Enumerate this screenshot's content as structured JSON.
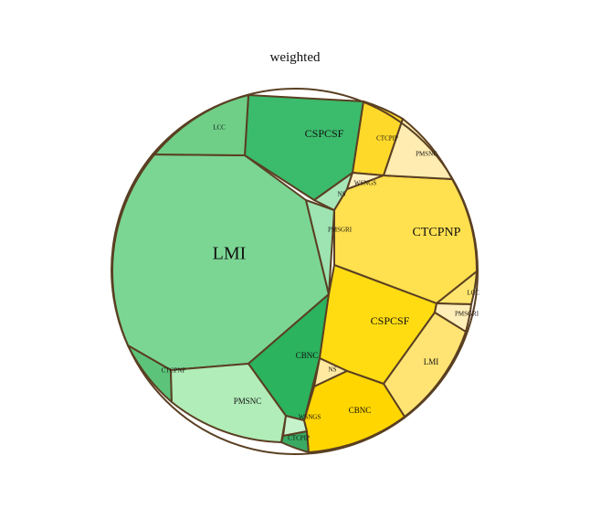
{
  "chart_data": {
    "type": "voronoi-treemap",
    "title": "weighted",
    "border_color": "#5a3f22",
    "groups": [
      {
        "color_family": "green",
        "cells": [
          {
            "label": "LMI",
            "fill": "#7bd694"
          },
          {
            "label": "CSPCSF",
            "fill": "#3bbb6c"
          },
          {
            "label": "LCC",
            "fill": "#6fcf87"
          },
          {
            "label": "PMSGRI",
            "fill": "#9ee3b2"
          },
          {
            "label": "NS",
            "fill": "#a7e6b8"
          },
          {
            "label": "CBNC",
            "fill": "#2bb35e"
          },
          {
            "label": "CTCPNP",
            "fill": "#5cc47a"
          },
          {
            "label": "PMSNC",
            "fill": "#b1edb9"
          },
          {
            "label": "WSNGS",
            "fill": "#c5f1cb"
          },
          {
            "label": "CTCPIP",
            "fill": "#3aaa63"
          }
        ]
      },
      {
        "color_family": "yellow",
        "cells": [
          {
            "label": "CTCPNP",
            "fill": "#ffe04f"
          },
          {
            "label": "CTCPIP",
            "fill": "#ffd92a"
          },
          {
            "label": "PMSNC",
            "fill": "#ffecb0"
          },
          {
            "label": "WSNGS",
            "fill": "#fff0c2"
          },
          {
            "label": "CSPCSF",
            "fill": "#ffdc12"
          },
          {
            "label": "LCC",
            "fill": "#ffe56d"
          },
          {
            "label": "PMSGRI",
            "fill": "#ffeeb8"
          },
          {
            "label": "LMI",
            "fill": "#ffe474"
          },
          {
            "label": "NS",
            "fill": "#ffe9a0"
          },
          {
            "label": "CBNC",
            "fill": "#ffd600"
          }
        ]
      }
    ]
  }
}
